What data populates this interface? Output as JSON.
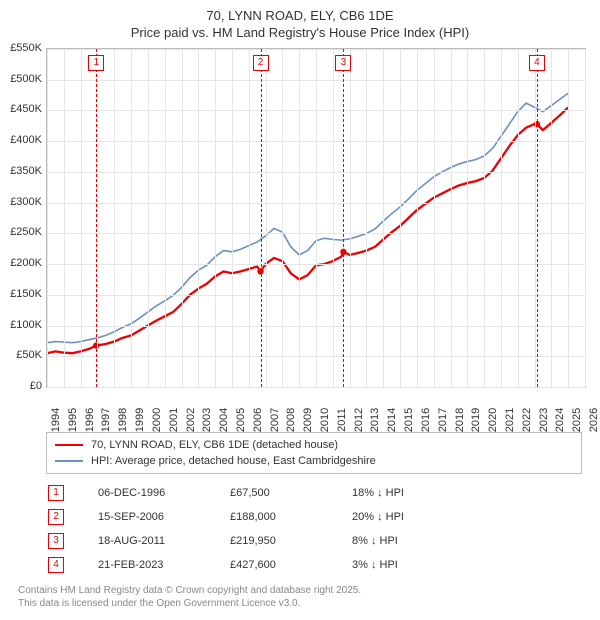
{
  "title_line1": "70, LYNN ROAD, ELY, CB6 1DE",
  "title_line2": "Price paid vs. HM Land Registry's House Price Index (HPI)",
  "chart": {
    "type": "line",
    "background_color": "#ffffff",
    "grid_color": "#e6e6e6",
    "border_color": "#bbbbbb",
    "x_domain": [
      1994,
      2026
    ],
    "y_domain": [
      0,
      550
    ],
    "y_unit_prefix": "£",
    "y_unit_suffix": "K",
    "y_ticks": [
      0,
      50,
      100,
      150,
      200,
      250,
      300,
      350,
      400,
      450,
      500,
      550
    ],
    "x_ticks": [
      1994,
      1995,
      1996,
      1997,
      1998,
      1999,
      2000,
      2001,
      2002,
      2003,
      2004,
      2005,
      2006,
      2007,
      2008,
      2009,
      2010,
      2011,
      2012,
      2013,
      2014,
      2015,
      2016,
      2017,
      2018,
      2019,
      2020,
      2021,
      2022,
      2023,
      2024,
      2025,
      2026
    ],
    "series": [
      {
        "name": "price_paid",
        "label": "70, LYNN ROAD, ELY, CB6 1DE (detached house)",
        "color": "#ee0000",
        "line_width": 2.3,
        "points": [
          [
            1994.0,
            55
          ],
          [
            1994.5,
            58
          ],
          [
            1995.0,
            56
          ],
          [
            1995.5,
            55
          ],
          [
            1996.0,
            58
          ],
          [
            1996.5,
            62
          ],
          [
            1996.93,
            67.5
          ],
          [
            1997.5,
            70
          ],
          [
            1998.0,
            74
          ],
          [
            1998.5,
            80
          ],
          [
            1999.0,
            84
          ],
          [
            1999.5,
            92
          ],
          [
            2000.0,
            100
          ],
          [
            2000.5,
            108
          ],
          [
            2001.0,
            115
          ],
          [
            2001.5,
            122
          ],
          [
            2002.0,
            135
          ],
          [
            2002.5,
            150
          ],
          [
            2003.0,
            160
          ],
          [
            2003.5,
            168
          ],
          [
            2004.0,
            180
          ],
          [
            2004.5,
            188
          ],
          [
            2005.0,
            185
          ],
          [
            2005.5,
            188
          ],
          [
            2006.0,
            192
          ],
          [
            2006.5,
            196
          ],
          [
            2006.7,
            188
          ],
          [
            2007.0,
            200
          ],
          [
            2007.5,
            210
          ],
          [
            2008.0,
            205
          ],
          [
            2008.5,
            185
          ],
          [
            2009.0,
            175
          ],
          [
            2009.5,
            182
          ],
          [
            2010.0,
            198
          ],
          [
            2010.5,
            200
          ],
          [
            2011.0,
            205
          ],
          [
            2011.5,
            212
          ],
          [
            2011.63,
            219.95
          ],
          [
            2012.0,
            215
          ],
          [
            2012.5,
            218
          ],
          [
            2013.0,
            222
          ],
          [
            2013.5,
            228
          ],
          [
            2014.0,
            240
          ],
          [
            2014.5,
            252
          ],
          [
            2015.0,
            262
          ],
          [
            2015.5,
            275
          ],
          [
            2016.0,
            288
          ],
          [
            2016.5,
            298
          ],
          [
            2017.0,
            308
          ],
          [
            2017.5,
            315
          ],
          [
            2018.0,
            322
          ],
          [
            2018.5,
            328
          ],
          [
            2019.0,
            332
          ],
          [
            2019.5,
            335
          ],
          [
            2020.0,
            340
          ],
          [
            2020.5,
            352
          ],
          [
            2021.0,
            372
          ],
          [
            2021.5,
            392
          ],
          [
            2022.0,
            410
          ],
          [
            2022.5,
            422
          ],
          [
            2023.0,
            428
          ],
          [
            2023.14,
            427.6
          ],
          [
            2023.5,
            418
          ],
          [
            2024.0,
            430
          ],
          [
            2024.5,
            442
          ],
          [
            2025.0,
            455
          ]
        ],
        "markers": [
          {
            "x": 1996.93,
            "y": 67.5
          },
          {
            "x": 2006.7,
            "y": 188
          },
          {
            "x": 2011.63,
            "y": 219.95
          },
          {
            "x": 2023.14,
            "y": 427.6
          }
        ]
      },
      {
        "name": "hpi",
        "label": "HPI: Average price, detached house, East Cambridgeshire",
        "color": "#6a8fc5",
        "line_width": 1.6,
        "points": [
          [
            1994.0,
            72
          ],
          [
            1994.5,
            74
          ],
          [
            1995.0,
            73
          ],
          [
            1995.5,
            72
          ],
          [
            1996.0,
            74
          ],
          [
            1996.5,
            77
          ],
          [
            1997.0,
            80
          ],
          [
            1997.5,
            84
          ],
          [
            1998.0,
            90
          ],
          [
            1998.5,
            97
          ],
          [
            1999.0,
            103
          ],
          [
            1999.5,
            112
          ],
          [
            2000.0,
            122
          ],
          [
            2000.5,
            132
          ],
          [
            2001.0,
            140
          ],
          [
            2001.5,
            149
          ],
          [
            2002.0,
            162
          ],
          [
            2002.5,
            178
          ],
          [
            2003.0,
            190
          ],
          [
            2003.5,
            198
          ],
          [
            2004.0,
            212
          ],
          [
            2004.5,
            222
          ],
          [
            2005.0,
            220
          ],
          [
            2005.5,
            224
          ],
          [
            2006.0,
            230
          ],
          [
            2006.5,
            236
          ],
          [
            2007.0,
            246
          ],
          [
            2007.5,
            258
          ],
          [
            2008.0,
            252
          ],
          [
            2008.5,
            228
          ],
          [
            2009.0,
            215
          ],
          [
            2009.5,
            222
          ],
          [
            2010.0,
            238
          ],
          [
            2010.5,
            242
          ],
          [
            2011.0,
            240
          ],
          [
            2011.5,
            239
          ],
          [
            2012.0,
            241
          ],
          [
            2012.5,
            245
          ],
          [
            2013.0,
            250
          ],
          [
            2013.5,
            257
          ],
          [
            2014.0,
            270
          ],
          [
            2014.5,
            282
          ],
          [
            2015.0,
            293
          ],
          [
            2015.5,
            306
          ],
          [
            2016.0,
            320
          ],
          [
            2016.5,
            331
          ],
          [
            2017.0,
            342
          ],
          [
            2017.5,
            350
          ],
          [
            2018.0,
            357
          ],
          [
            2018.5,
            363
          ],
          [
            2019.0,
            367
          ],
          [
            2019.5,
            370
          ],
          [
            2020.0,
            376
          ],
          [
            2020.5,
            388
          ],
          [
            2021.0,
            408
          ],
          [
            2021.5,
            428
          ],
          [
            2022.0,
            448
          ],
          [
            2022.5,
            462
          ],
          [
            2023.0,
            455
          ],
          [
            2023.5,
            448
          ],
          [
            2024.0,
            458
          ],
          [
            2024.5,
            468
          ],
          [
            2025.0,
            478
          ]
        ]
      }
    ],
    "events": [
      {
        "n": "1",
        "x": 1996.93,
        "date": "06-DEC-1996",
        "price": "£67,500",
        "delta": "18% ↓ HPI"
      },
      {
        "n": "2",
        "x": 2006.7,
        "date": "15-SEP-2006",
        "price": "£188,000",
        "delta": "20% ↓ HPI"
      },
      {
        "n": "3",
        "x": 2011.63,
        "date": "18-AUG-2011",
        "price": "£219,950",
        "delta": "8% ↓ HPI"
      },
      {
        "n": "4",
        "x": 2023.14,
        "date": "21-FEB-2023",
        "price": "£427,600",
        "delta": "3% ↓ HPI"
      }
    ],
    "event_line_color": "#ee0000",
    "label_fontsize": 11,
    "title_fontsize": 13
  },
  "footer_line1": "Contains HM Land Registry data © Crown copyright and database right 2025.",
  "footer_line2": "This data is licensed under the Open Government Licence v3.0."
}
